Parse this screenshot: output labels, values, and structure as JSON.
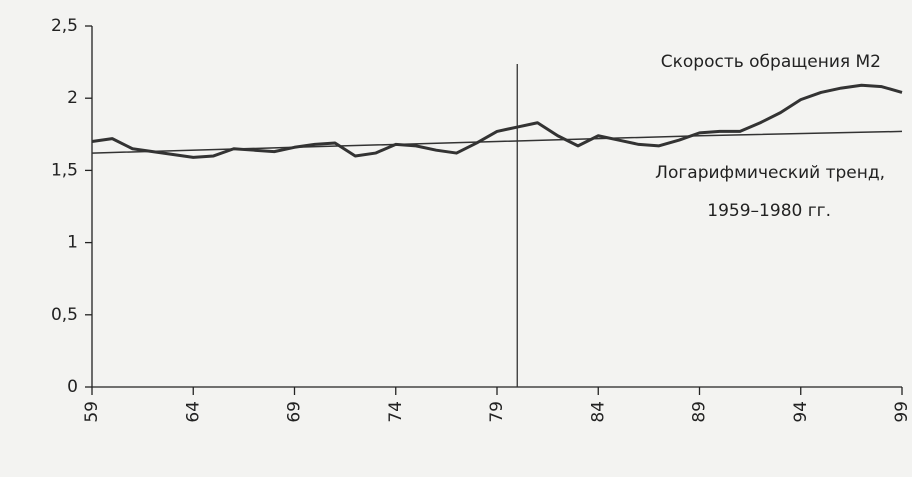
{
  "chart_data": {
    "type": "line",
    "xlim": [
      59,
      99
    ],
    "xticks": [
      59,
      64,
      69,
      74,
      79,
      84,
      89,
      94,
      99
    ],
    "ylim": [
      0,
      2.5
    ],
    "yticks": [
      0,
      {
        "value": 0.5,
        "label": "0,5"
      },
      1,
      {
        "value": 1.5,
        "label": "1,5"
      },
      2,
      {
        "value": 2.5,
        "label": "2,5"
      }
    ],
    "vline_x": 80,
    "series": [
      {
        "name": "Скорость обращения M2",
        "color": "#333333",
        "width": 3,
        "x": [
          59,
          60,
          61,
          62,
          63,
          64,
          65,
          66,
          67,
          68,
          69,
          70,
          71,
          72,
          73,
          74,
          75,
          76,
          77,
          78,
          79,
          80,
          81,
          82,
          83,
          84,
          85,
          86,
          87,
          88,
          89,
          90,
          91,
          92,
          93,
          94,
          95,
          96,
          97,
          98,
          99
        ],
        "values": [
          1.7,
          1.72,
          1.65,
          1.63,
          1.61,
          1.59,
          1.6,
          1.65,
          1.64,
          1.63,
          1.66,
          1.68,
          1.69,
          1.6,
          1.62,
          1.68,
          1.67,
          1.64,
          1.62,
          1.69,
          1.77,
          1.8,
          1.83,
          1.74,
          1.67,
          1.74,
          1.71,
          1.68,
          1.67,
          1.71,
          1.76,
          1.77,
          1.77,
          1.83,
          1.9,
          1.99,
          2.04,
          2.07,
          2.09,
          2.08,
          2.04
        ]
      },
      {
        "name_lines": [
          "Логарифмический тренд,",
          "1959–1980 гг."
        ],
        "color": "#333333",
        "width": 1.5,
        "x": [
          59,
          69,
          79,
          89,
          99
        ],
        "values": [
          1.62,
          1.66,
          1.7,
          1.74,
          1.77
        ]
      }
    ]
  }
}
